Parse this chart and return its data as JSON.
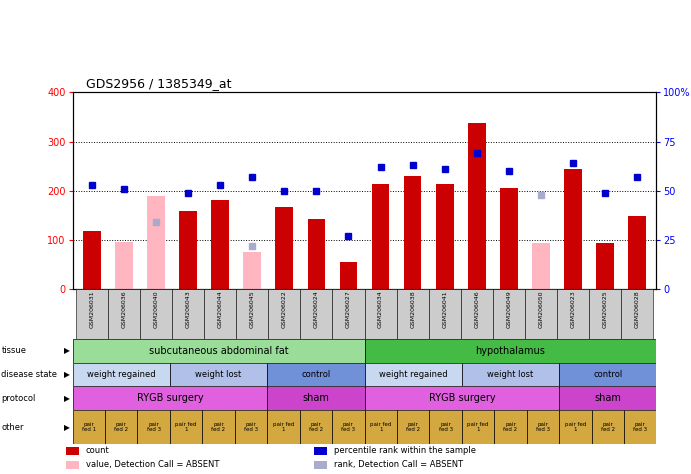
{
  "title": "GDS2956 / 1385349_at",
  "samples": [
    "GSM206031",
    "GSM206036",
    "GSM206040",
    "GSM206043",
    "GSM206044",
    "GSM206045",
    "GSM206022",
    "GSM206024",
    "GSM206027",
    "GSM206034",
    "GSM206038",
    "GSM206041",
    "GSM206046",
    "GSM206049",
    "GSM206050",
    "GSM206023",
    "GSM206025",
    "GSM206028"
  ],
  "count_values": [
    118,
    0,
    0,
    158,
    182,
    0,
    168,
    143,
    55,
    213,
    230,
    213,
    338,
    205,
    0,
    245,
    93,
    148
  ],
  "count_absent": [
    0,
    96,
    190,
    0,
    0,
    76,
    0,
    0,
    0,
    0,
    0,
    0,
    0,
    0,
    94,
    0,
    0,
    0
  ],
  "percentile_values_pct": [
    53,
    51,
    0,
    49,
    53,
    57,
    50,
    50,
    27,
    62,
    63,
    61,
    69,
    60,
    0,
    64,
    49,
    57
  ],
  "percentile_absent_pct": [
    0,
    0,
    34,
    0,
    0,
    22,
    0,
    0,
    0,
    0,
    0,
    0,
    0,
    0,
    48,
    0,
    0,
    0
  ],
  "bar_color": "#cc0000",
  "bar_absent_color": "#ffb6c1",
  "dot_color": "#0000cc",
  "dot_absent_color": "#aaaacc",
  "ylim_left": [
    0,
    400
  ],
  "ylim_right": [
    0,
    100
  ],
  "yticks_left": [
    0,
    100,
    200,
    300,
    400
  ],
  "yticks_right_vals": [
    0,
    25,
    50,
    75,
    100
  ],
  "yticks_right_labels": [
    "0",
    "25",
    "50",
    "75",
    "100%"
  ],
  "tissue_groups": [
    {
      "label": "subcutaneous abdominal fat",
      "start": 0,
      "end": 9,
      "color": "#99dd99"
    },
    {
      "label": "hypothalamus",
      "start": 9,
      "end": 18,
      "color": "#44bb44"
    }
  ],
  "disease_groups": [
    {
      "label": "weight regained",
      "start": 0,
      "end": 3,
      "color": "#c8d8f0"
    },
    {
      "label": "weight lost",
      "start": 3,
      "end": 6,
      "color": "#b0c0e8"
    },
    {
      "label": "control",
      "start": 6,
      "end": 9,
      "color": "#7090d8"
    },
    {
      "label": "weight regained",
      "start": 9,
      "end": 12,
      "color": "#c8d8f0"
    },
    {
      "label": "weight lost",
      "start": 12,
      "end": 15,
      "color": "#b0c0e8"
    },
    {
      "label": "control",
      "start": 15,
      "end": 18,
      "color": "#7090d8"
    }
  ],
  "protocol_groups": [
    {
      "label": "RYGB surgery",
      "start": 0,
      "end": 6,
      "color": "#e060e0"
    },
    {
      "label": "sham",
      "start": 6,
      "end": 9,
      "color": "#cc44cc"
    },
    {
      "label": "RYGB surgery",
      "start": 9,
      "end": 15,
      "color": "#e060e0"
    },
    {
      "label": "sham",
      "start": 15,
      "end": 18,
      "color": "#cc44cc"
    }
  ],
  "other_color": "#d4a840",
  "other_labels": [
    "pair\nfed 1",
    "pair\nfed 2",
    "pair\nfed 3",
    "pair fed\n1",
    "pair\nfed 2",
    "pair\nfed 3",
    "pair fed\n1",
    "pair\nfed 2",
    "pair\nfed 3",
    "pair fed\n1",
    "pair\nfed 2",
    "pair\nfed 3",
    "pair fed\n1",
    "pair\nfed 2",
    "pair\nfed 3",
    "pair fed\n1",
    "pair\nfed 2",
    "pair\nfed 3"
  ],
  "legend_items": [
    {
      "color": "#cc0000",
      "label": "count"
    },
    {
      "color": "#0000cc",
      "label": "percentile rank within the sample"
    },
    {
      "color": "#ffb6c1",
      "label": "value, Detection Call = ABSENT"
    },
    {
      "color": "#aaaacc",
      "label": "rank, Detection Call = ABSENT"
    }
  ]
}
